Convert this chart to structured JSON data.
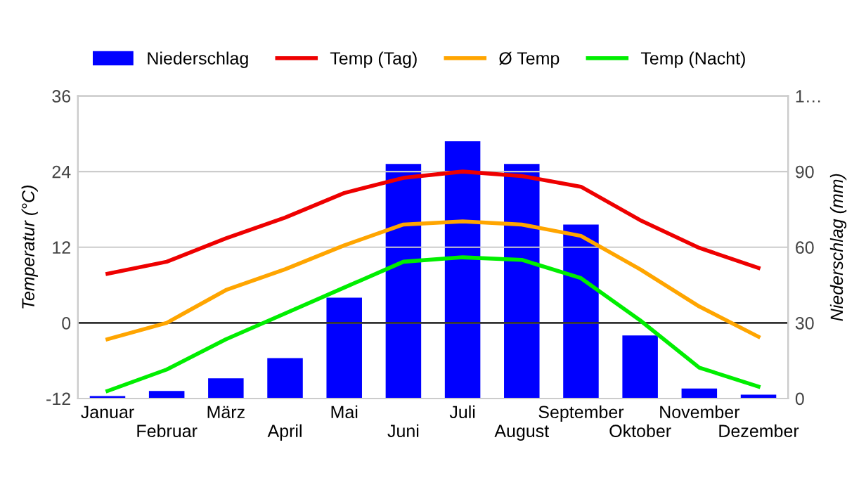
{
  "chart_data": {
    "type": "line",
    "categories": [
      "Januar",
      "Februar",
      "März",
      "April",
      "Mai",
      "Juni",
      "Juli",
      "August",
      "September",
      "Oktober",
      "November",
      "Dezember"
    ],
    "ylabel": "Temperatur (°C)",
    "y2label": "Niederschlag (mm)",
    "ylim": [
      -12,
      36
    ],
    "yticks": [
      -12,
      0,
      12,
      24,
      36
    ],
    "y2lim": [
      0,
      120
    ],
    "y2ticks": [
      0,
      30,
      60,
      90,
      {
        "value": 120,
        "label": "1…"
      }
    ],
    "grid": "y",
    "legend": "top left",
    "ref_lines": [
      {
        "axis": "y",
        "value": 0,
        "color": "#333333"
      }
    ],
    "series": [
      {
        "name": "Niederschlag",
        "type": "bar",
        "axis": "y2",
        "color": "#0000ff",
        "values": [
          1,
          3,
          8,
          16,
          40,
          93,
          102,
          93,
          69,
          25,
          4,
          1.5
        ]
      },
      {
        "name": "Temp (Tag)",
        "color": "#ee0000",
        "values": [
          7.8,
          9.7,
          13.4,
          16.7,
          20.6,
          23.0,
          24.0,
          23.3,
          21.6,
          16.3,
          11.9,
          8.7
        ]
      },
      {
        "name": "Ø Temp",
        "color": "#ffa500",
        "values": [
          -2.6,
          0,
          5.2,
          8.5,
          12.3,
          15.6,
          16.1,
          15.6,
          13.8,
          8.5,
          2.6,
          -2.2
        ]
      },
      {
        "name": "Temp (Nacht)",
        "color": "#00ee00",
        "values": [
          -10.8,
          -7.4,
          -2.6,
          1.5,
          5.6,
          9.7,
          10.4,
          10.0,
          7.1,
          0.4,
          -7.1,
          -10.1
        ]
      }
    ]
  }
}
